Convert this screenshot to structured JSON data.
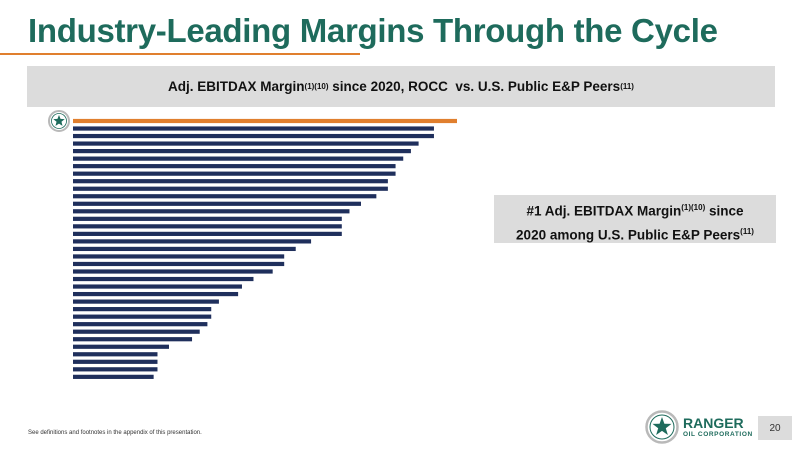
{
  "slide": {
    "title": "Industry-Leading Margins Through the Cycle",
    "subtitle": {
      "text_a": "Adj. EBITDAX Margin",
      "sup_a": "(1)(10)",
      "text_b": " since 2020, ROCC  vs. U.S. Public E&P Peers",
      "sup_b": "(11)"
    },
    "callout": {
      "line1_a": "#1 Adj. EBITDAX Margin",
      "line1_sup": "(1)(10)",
      "line1_b": " since",
      "line2_a": "2020 among U.S. Public E&P Peers",
      "line2_sup": "(11)"
    },
    "footnote": "See definitions and footnotes in the appendix of this presentation.",
    "page_number": "20"
  },
  "logo": {
    "name": "RANGER",
    "sub": "OIL CORPORATION",
    "icon": "star-seal-icon"
  },
  "colors": {
    "brand_green": "#1e6b5c",
    "highlight": "#e07f2e",
    "peer": "#1f2f5c"
  },
  "chart_data": {
    "type": "bar",
    "orientation": "horizontal",
    "title": "",
    "xlabel": "",
    "ylabel": "",
    "grid": false,
    "legend": "none",
    "highlight_index": 0,
    "marker_icon": "star-seal-icon",
    "values": [
      100,
      94,
      94,
      90,
      88,
      86,
      84,
      84,
      82,
      82,
      79,
      75,
      72,
      70,
      70,
      70,
      62,
      58,
      55,
      55,
      52,
      47,
      44,
      43,
      38,
      36,
      36,
      35,
      33,
      31,
      25,
      22,
      22,
      22,
      21
    ]
  }
}
